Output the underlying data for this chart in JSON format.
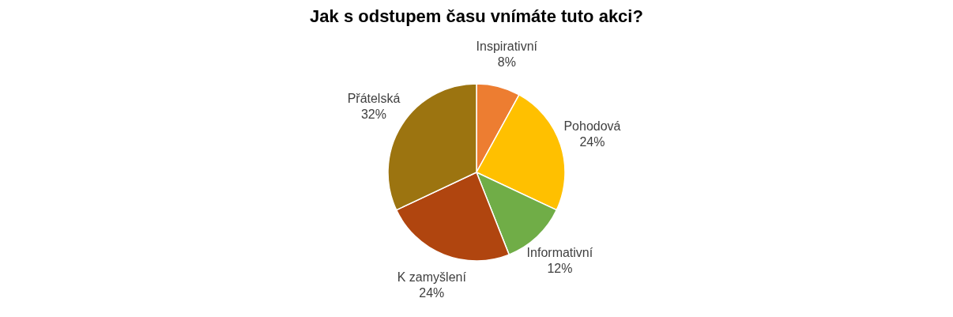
{
  "chart_data": {
    "type": "pie",
    "title": "Jak s odstupem času vnímáte tuto akci?",
    "categories": [
      "Inspirativní",
      "Pohodová",
      "Informativní",
      "K zamyšlení",
      "Přátelská"
    ],
    "values": [
      8,
      24,
      12,
      24,
      32
    ],
    "value_labels": [
      "8%",
      "24%",
      "12%",
      "24%",
      "32%"
    ],
    "colors": [
      "#ed7d31",
      "#ffc000",
      "#70ad47",
      "#b0450f",
      "#9c7410"
    ],
    "legend": false
  }
}
